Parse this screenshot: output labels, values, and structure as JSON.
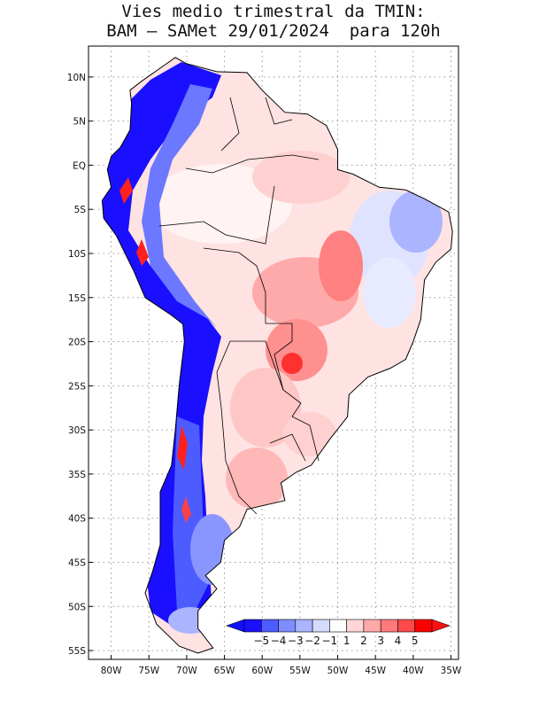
{
  "title": {
    "line1": "Vies medio trimestral da TMIN:",
    "line2": "BAM – SAMet 29/01/2024  para 120h"
  },
  "map": {
    "lon_range": [
      -83,
      -34
    ],
    "lat_range": [
      -56,
      13.5
    ],
    "grid": true,
    "lat_ticks": [
      "10N",
      "5N",
      "EQ",
      "5S",
      "10S",
      "15S",
      "20S",
      "25S",
      "30S",
      "35S",
      "40S",
      "45S",
      "50S",
      "55S"
    ],
    "lon_ticks": [
      "80W",
      "75W",
      "70W",
      "65W",
      "60W",
      "55W",
      "50W",
      "45W",
      "40W",
      "35W"
    ]
  },
  "colorbar": {
    "labels": [
      "−5",
      "−4",
      "−3",
      "−2",
      "−1",
      "1",
      "2",
      "3",
      "4",
      "5"
    ],
    "colors": [
      "#1a10ff",
      "#4d5cff",
      "#7f8cff",
      "#aab4ff",
      "#d4dbff",
      "#ffffff",
      "#ffd6d6",
      "#ffaaaa",
      "#ff7a7a",
      "#ff4a4a",
      "#ff0000"
    ],
    "min_arrow_color": "#1010ff",
    "max_arrow_color": "#ff1010"
  }
}
